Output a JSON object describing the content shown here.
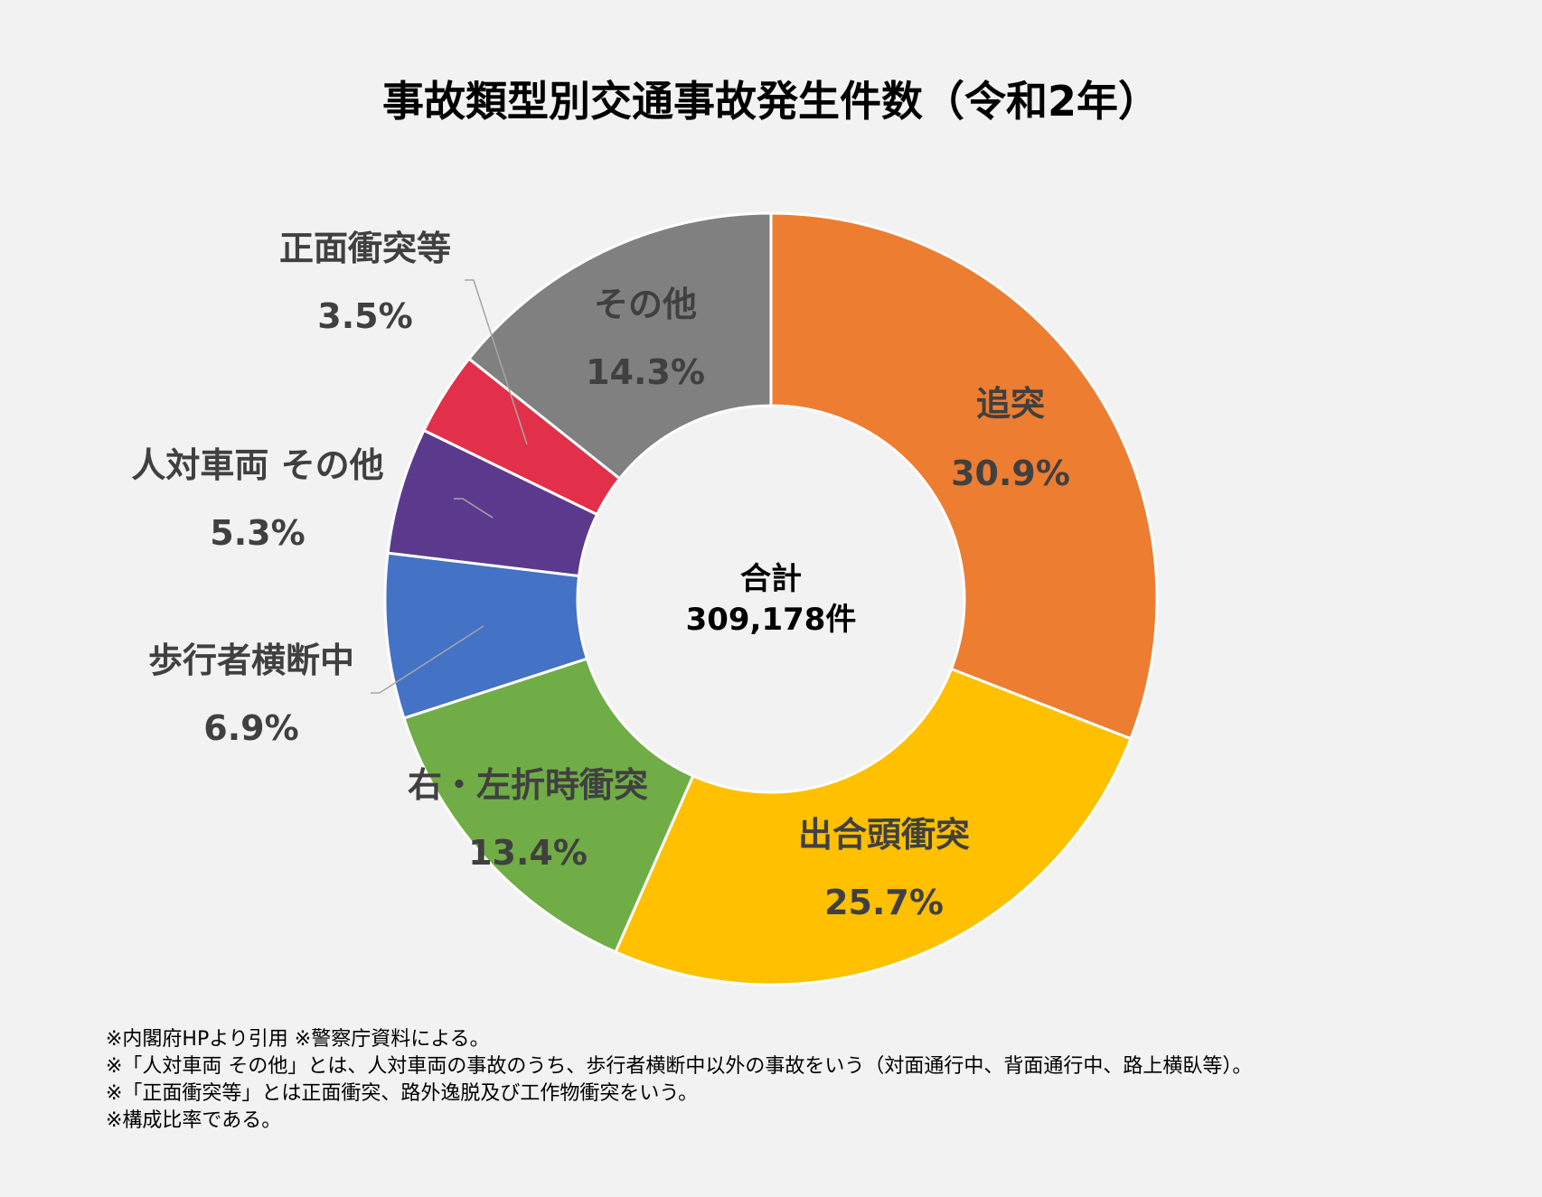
{
  "chart_data": {
    "type": "pie",
    "variant": "donut",
    "title": "事故類型別交通事故発生件数（令和2年）",
    "center_label": {
      "line1": "合計",
      "line2": "309,178件"
    },
    "slices": [
      {
        "name": "追突",
        "value": 30.9,
        "label": "30.9%",
        "color": "#ed7d31"
      },
      {
        "name": "出合頭衝突",
        "value": 25.7,
        "label": "25.7%",
        "color": "#ffc000"
      },
      {
        "name": "右・左折時衝突",
        "value": 13.4,
        "label": "13.4%",
        "color": "#70ad47"
      },
      {
        "name": "歩行者横断中",
        "value": 6.9,
        "label": "6.9%",
        "color": "#4472c4"
      },
      {
        "name": "人対車両 その他",
        "value": 5.3,
        "label": "5.3%",
        "color": "#5b3a8e"
      },
      {
        "name": "正面衝突等",
        "value": 3.5,
        "label": "3.5%",
        "color": "#e2304a"
      },
      {
        "name": "その他",
        "value": 14.3,
        "label": "14.3%",
        "color": "#808080"
      }
    ]
  },
  "notes": [
    "※内閣府HPより引用 ※警察庁資料による。",
    "※「人対車両 その他」とは、人対車両の事故のうち、歩行者横断中以外の事故をいう（対面通行中、背面通行中、路上横臥等）。",
    "※「正面衝突等」とは正面衝突、路外逸脱及び工作物衝突をいう。",
    "※構成比率である。"
  ]
}
